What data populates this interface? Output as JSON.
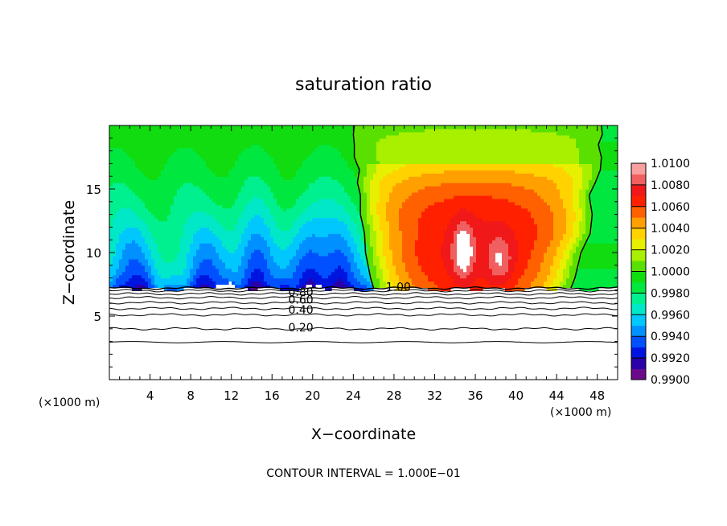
{
  "chart_data": {
    "type": "heatmap",
    "title": "saturation ratio",
    "xlabel": "X−coordinate",
    "ylabel": "Z−coordinate",
    "x_unit_left": "(×1000 m)",
    "x_unit_right": "(×1000 m)",
    "footer": "CONTOUR INTERVAL = 1.000E−01",
    "xlim": [
      0,
      50
    ],
    "ylim": [
      0,
      20
    ],
    "x_ticks": [
      4,
      8,
      12,
      16,
      20,
      24,
      28,
      32,
      36,
      40,
      44,
      48
    ],
    "y_ticks": [
      5,
      10,
      15
    ],
    "colorbar": {
      "range": [
        0.99,
        1.01
      ],
      "tick_labels": [
        "1.0100",
        "1.0080",
        "1.0060",
        "1.0040",
        "1.0020",
        "1.0000",
        "0.9980",
        "0.9960",
        "0.9940",
        "0.9920",
        "0.9900"
      ],
      "colors": [
        "#6a0a8a",
        "#2a00a8",
        "#0014e0",
        "#0050ff",
        "#0090ff",
        "#00c8ff",
        "#00e8c8",
        "#00f090",
        "#00e840",
        "#10dc10",
        "#5ae000",
        "#a8f000",
        "#e6f000",
        "#ffd200",
        "#ffa000",
        "#ff6000",
        "#ff2000",
        "#f01818",
        "#f06060",
        "#f8a0a0"
      ]
    },
    "contour_labels": [
      {
        "text": "1.00",
        "x": 27.2,
        "z": 7.3
      },
      {
        "text": "0.80",
        "x": 17.6,
        "z": 6.9
      },
      {
        "text": "0.60",
        "x": 17.6,
        "z": 6.3
      },
      {
        "text": "0.40",
        "x": 17.6,
        "z": 5.5
      },
      {
        "text": "0.20",
        "x": 17.6,
        "z": 4.1
      }
    ],
    "subsaturated_contour_levels": [
      0.2,
      0.4,
      0.5,
      0.6,
      0.7,
      0.8,
      0.9,
      1.0
    ],
    "unit_contour_left_x": [
      26.0,
      25.7,
      25.2,
      25.1,
      24.7,
      24.7,
      24.4,
      24.6,
      24.1,
      24.1,
      24.0,
      24.1
    ],
    "unit_contour_right_x": [
      45.4,
      45.8,
      46.4,
      47.3,
      47.5,
      47.2,
      47.8,
      48.3,
      48.4,
      48.1,
      48.5,
      48.4
    ],
    "unit_contour_z": [
      7.2,
      8.0,
      10.0,
      11.5,
      13.0,
      14.5,
      15.5,
      16.5,
      17.5,
      18.5,
      19.3,
      20.0
    ]
  }
}
